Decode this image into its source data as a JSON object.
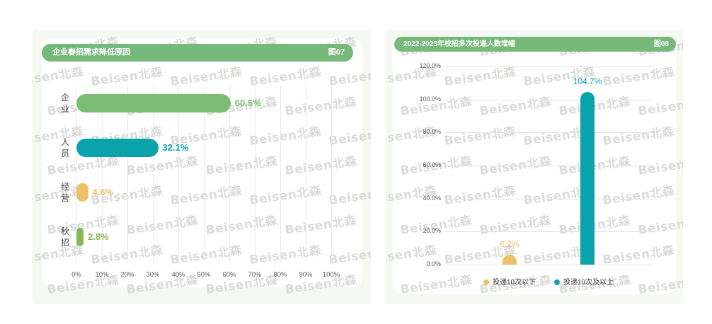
{
  "chart_data": [
    {
      "type": "bar",
      "orientation": "horizontal",
      "title": "企业春招需求降低原因",
      "figure_label": "图07",
      "categories": [
        "企业",
        "人员",
        "经营",
        "秋招"
      ],
      "values": [
        60.5,
        32.1,
        4.6,
        2.8
      ],
      "value_labels": [
        "60.5%",
        "32.1%",
        "4.6%",
        "2.8%"
      ],
      "colors": [
        "#7cbc75",
        "#0aa3ac",
        "#eec06a",
        "#88b850"
      ],
      "x_ticks": [
        "0%",
        "10%",
        "20%",
        "30%",
        "40%",
        "50%",
        "60%",
        "70%",
        "80%",
        "90%",
        "100%"
      ],
      "xlim": [
        0,
        100
      ],
      "grid": true
    },
    {
      "type": "bar",
      "orientation": "vertical",
      "title": "2022-2023年校招多次投递人数增幅",
      "figure_label": "图08",
      "series": [
        {
          "name": "投递10次以下",
          "value": 6.2,
          "label": "6.2%",
          "color": "#eec06a"
        },
        {
          "name": "投递10次及以上",
          "value": 104.7,
          "label": "104.7%",
          "color": "#0aa3ac"
        }
      ],
      "y_ticks": [
        "0.0%",
        "20.0%",
        "40.0%",
        "60.0%",
        "80.0%",
        "100.0%",
        "120.0%"
      ],
      "ylim": [
        0,
        120
      ],
      "grid": true,
      "legend": "bottom"
    }
  ],
  "watermark": "Beisen北森"
}
